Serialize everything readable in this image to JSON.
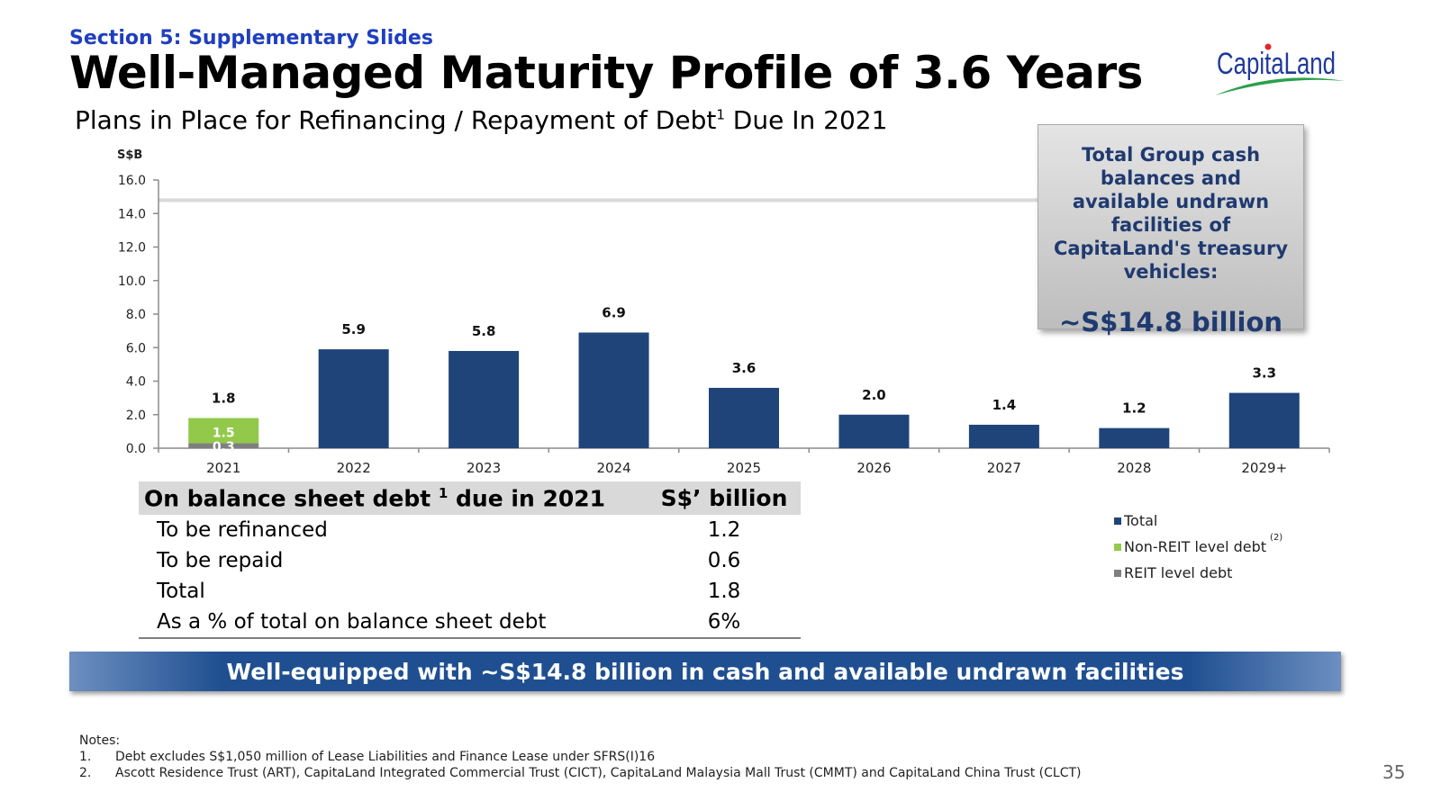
{
  "header": {
    "section": "Section 5: Supplementary Slides",
    "title": "Well-Managed Maturity Profile of 3.6 Years",
    "subtitle_main": "Plans in Place for Refinancing / Repayment of Debt",
    "subtitle_sup": "1",
    "subtitle_end": " Due In 2021"
  },
  "logo": {
    "text": "CapitaLand"
  },
  "callout": {
    "text": "Total Group cash balances and available undrawn facilities of CapitaLand's treasury vehicles:",
    "value": "~S$14.8 billion"
  },
  "chart_data": {
    "type": "bar",
    "ylabel": "S$B",
    "ylim": [
      0,
      16
    ],
    "yticks": [
      "0.0",
      "2.0",
      "4.0",
      "6.0",
      "8.0",
      "10.0",
      "12.0",
      "14.0",
      "16.0"
    ],
    "categories": [
      "2021",
      "2022",
      "2023",
      "2024",
      "2025",
      "2026",
      "2027",
      "2028",
      "2029+"
    ],
    "series": [
      {
        "name": "Total",
        "values": [
          null,
          5.9,
          5.8,
          6.9,
          3.6,
          2.0,
          1.4,
          1.2,
          3.3
        ],
        "color": "#1f4479"
      },
      {
        "name": "Non-REIT level debt",
        "values": [
          1.5,
          null,
          null,
          null,
          null,
          null,
          null,
          null,
          null
        ],
        "color": "#92c94a"
      },
      {
        "name": "REIT level debt",
        "values": [
          0.3,
          null,
          null,
          null,
          null,
          null,
          null,
          null,
          null
        ],
        "color": "#7f7f7f"
      }
    ],
    "totals": [
      1.8,
      5.9,
      5.8,
      6.9,
      3.6,
      2.0,
      1.4,
      1.2,
      3.3
    ],
    "total_labels": [
      "1.8",
      "5.9",
      "5.8",
      "6.9",
      "3.6",
      "2.0",
      "1.4",
      "1.2",
      "3.3"
    ],
    "segment_labels": [
      "1.5",
      "0.3"
    ],
    "reference_line": 14.8,
    "legend_placement": "bottom-right"
  },
  "legend": {
    "items": [
      {
        "label": "Total",
        "color": "#1f4479",
        "note": ""
      },
      {
        "label": "Non-REIT level debt",
        "color": "#92c94a",
        "note": "(2)"
      },
      {
        "label": "REIT level debt",
        "color": "#7f7f7f",
        "note": ""
      }
    ]
  },
  "table": {
    "header_label": "On balance sheet debt ",
    "header_sup": "1",
    "header_label_end": " due in 2021",
    "header_value": "S$’ billion",
    "rows": [
      {
        "label": "To be refinanced",
        "value": "1.2"
      },
      {
        "label": "To be repaid",
        "value": "0.6"
      },
      {
        "label": "Total",
        "value": "1.8"
      },
      {
        "label": "As a % of total on balance sheet debt",
        "value": "6%"
      }
    ]
  },
  "banner": "Well-equipped with ~S$14.8 billion in cash and available undrawn facilities",
  "notes": {
    "heading": "Notes:",
    "items": [
      {
        "num": "1.",
        "text": "Debt excludes S$1,050 million of Lease Liabilities and Finance Lease under SFRS(I)16"
      },
      {
        "num": "2.",
        "text": "Ascott Residence Trust (ART), CapitaLand Integrated Commercial Trust (CICT), CapitaLand Malaysia Mall Trust (CMMT) and CapitaLand China Trust (CLCT)"
      }
    ]
  },
  "page_number": "35"
}
